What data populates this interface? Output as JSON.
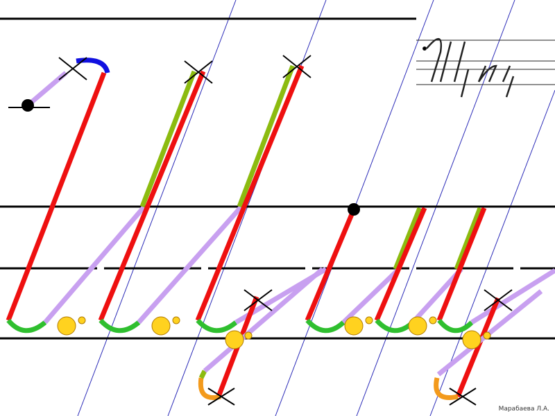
{
  "footer": {
    "author": "Марабаева Л.А."
  }
}
